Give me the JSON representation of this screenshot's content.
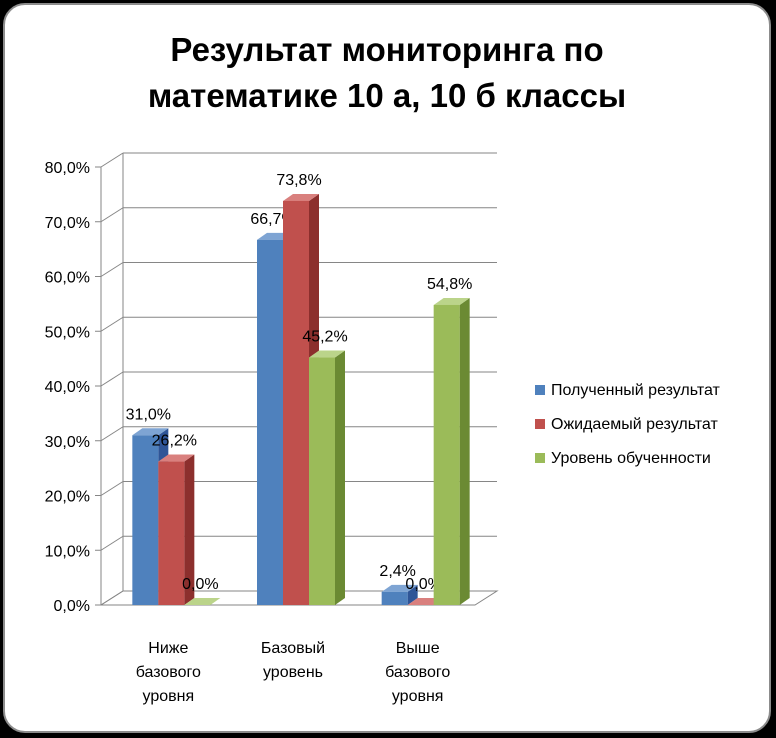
{
  "chart_data": {
    "type": "bar",
    "title": "Результат мониторинга по математике 10 а, 10 б классы",
    "title_lines": [
      "Результат мониторинга по",
      "математике 10 а, 10 б классы"
    ],
    "categories": [
      [
        "Ниже",
        "базового",
        "уровня"
      ],
      [
        "Базовый",
        "уровень"
      ],
      [
        "Выше",
        "базового",
        "уровня"
      ]
    ],
    "series": [
      {
        "name": "Полученный результат",
        "values": [
          31.0,
          66.7,
          2.4
        ],
        "labels": [
          "31,0%",
          "66,7%",
          "2,4%"
        ],
        "color": "#4F81BD",
        "color_dark": "#2F5597",
        "color_top": "#7EA4D3"
      },
      {
        "name": "Ожидаемый результат",
        "values": [
          26.2,
          73.8,
          0.0
        ],
        "labels": [
          "26,2%",
          "73,8%",
          "0,0%"
        ],
        "color": "#C0504D",
        "color_dark": "#8C2F2D",
        "color_top": "#D9807E"
      },
      {
        "name": "Уровень обученности",
        "values": [
          0.0,
          45.2,
          54.8
        ],
        "labels": [
          "0,0%",
          "45,2%",
          "54,8%"
        ],
        "color": "#9BBB59",
        "color_dark": "#6B8A33",
        "color_top": "#BBD48A"
      }
    ],
    "yticks": [
      "0,0%",
      "10,0%",
      "20,0%",
      "30,0%",
      "40,0%",
      "50,0%",
      "60,0%",
      "70,0%",
      "80,0%"
    ],
    "ylim": [
      0,
      80
    ],
    "grid": true,
    "legend_position": "right",
    "three_d": true,
    "xlabel": "",
    "ylabel": ""
  }
}
